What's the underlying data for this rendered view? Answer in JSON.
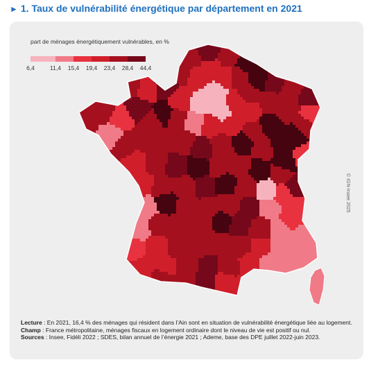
{
  "title": "1. Taux de vulnérabilité énergétique par département en 2021",
  "legend": {
    "title": "part de ménages énergétiquement vulnérables, en %",
    "breaks": [
      "6,4",
      "11,4",
      "15,4",
      "19,4",
      "23,4",
      "28,4",
      "44,4"
    ],
    "colors": [
      "#f7b3bd",
      "#f07a87",
      "#e8323f",
      "#d01f2b",
      "#a5101e",
      "#75081a",
      "#45040f"
    ]
  },
  "credit": "© IGN-Insee 2025",
  "notes": {
    "lecture_label": "Lecture",
    "lecture_text": " : En 2021, 16,4 % des ménages qui résident dans l’Ain sont en situation de vulnérabilité énergétique liée au logement.",
    "champ_label": "Champ",
    "champ_text": " : France métropolitaine, ménages fiscaux en logement ordinaire dont le niveau de vie est positif ou nul.",
    "sources_label": "Sources",
    "sources_text": " : Insee, Fidéli 2022 ; SDES, bilan annuel de l’énergie 2021 ; Ademe, base des DPE juillet 2022-juin 2023."
  }
}
